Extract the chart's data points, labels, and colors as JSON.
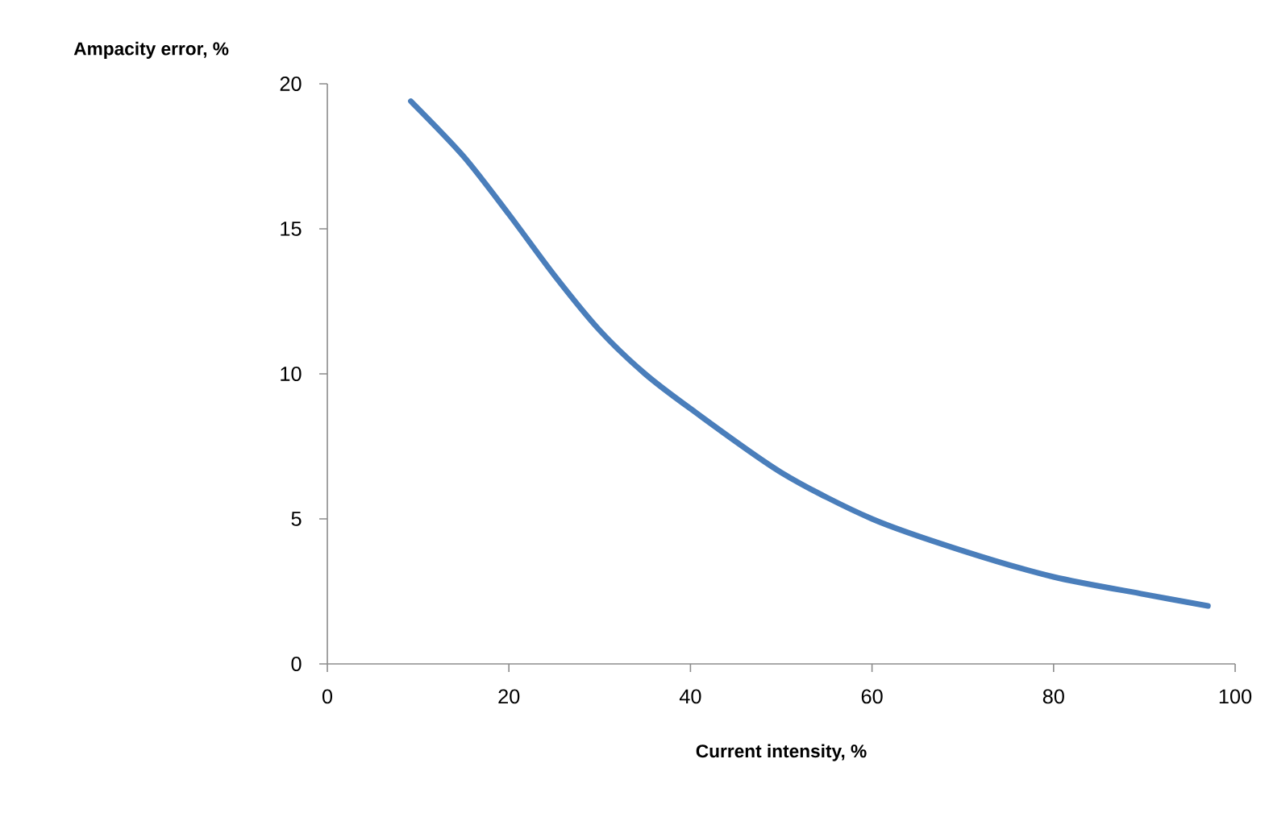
{
  "chart_data": {
    "type": "line",
    "xlabel": "Current intensity, %",
    "ylabel": "Ampacity error, %",
    "x": [
      9.2,
      15,
      20,
      25,
      30,
      35,
      40,
      50,
      60,
      70,
      80,
      90,
      97
    ],
    "series": [
      {
        "color": "#4a7ebb",
        "values": [
          19.4,
          17.5,
          15.5,
          13.4,
          11.5,
          10.0,
          8.8,
          6.6,
          5.0,
          3.9,
          3.0,
          2.4,
          2.0
        ]
      }
    ],
    "xlim": [
      0,
      100
    ],
    "ylim": [
      0,
      20
    ],
    "xticks": [
      0,
      20,
      40,
      60,
      80,
      100
    ],
    "yticks": [
      0,
      5,
      10,
      15,
      20
    ],
    "grid": false,
    "marker": "none",
    "line_style": "solid"
  }
}
